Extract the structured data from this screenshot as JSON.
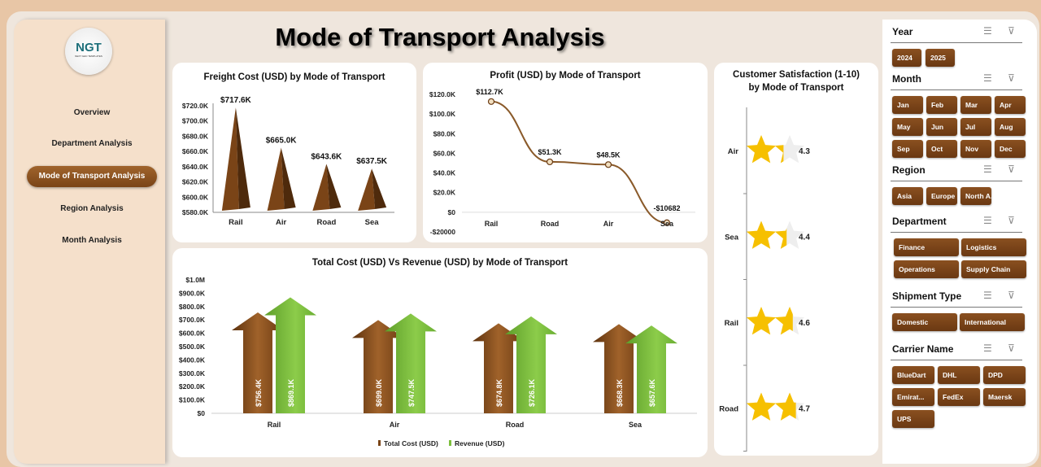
{
  "title": "Mode of Transport Analysis",
  "logo": {
    "text": "NGT",
    "subtext": "NEXT GEN TEMPLATES"
  },
  "nav": [
    {
      "label": "Overview",
      "active": false
    },
    {
      "label": "Department Analysis",
      "active": false
    },
    {
      "label": "Mode of Transport Analysis",
      "active": true
    },
    {
      "label": "Region Analysis",
      "active": false
    },
    {
      "label": "Month Analysis",
      "active": false
    }
  ],
  "colors": {
    "brown": "#7a4417",
    "green": "#7cbf3c",
    "accent": "#8a5020"
  },
  "chart_data": [
    {
      "type": "bar",
      "title": "Freight Cost (USD) by Mode of Transport",
      "categories": [
        "Rail",
        "Air",
        "Road",
        "Sea"
      ],
      "values": [
        717600,
        665000,
        643600,
        637500
      ],
      "labels": [
        "$717.6K",
        "$665.0K",
        "$643.6K",
        "$637.5K"
      ],
      "ylim": [
        580000,
        720000
      ],
      "yticks": [
        "$580.0K",
        "$600.0K",
        "$620.0K",
        "$640.0K",
        "$660.0K",
        "$680.0K",
        "$700.0K",
        "$720.0K"
      ],
      "mark": "pyramid"
    },
    {
      "type": "line",
      "title": "Profit (USD) by Mode of Transport",
      "categories": [
        "Rail",
        "Road",
        "Air",
        "Sea"
      ],
      "values": [
        112700,
        51300,
        48500,
        -10682
      ],
      "labels": [
        "$112.7K",
        "$51.3K",
        "$48.5K",
        "-$10682"
      ],
      "ylim": [
        -20000,
        120000
      ],
      "yticks": [
        "-$20000",
        "$0",
        "$20.0K",
        "$40.0K",
        "$60.0K",
        "$80.0K",
        "$100.0K",
        "$120.0K"
      ],
      "smooth": true
    },
    {
      "type": "bar",
      "title": "Customer Satisfaction (1-10) by Mode of Transport",
      "title_lines": [
        "Customer Satisfaction (1-10)",
        "by Mode of Transport"
      ],
      "orientation": "horizontal",
      "categories": [
        "Air",
        "Sea",
        "Rail",
        "Road"
      ],
      "values": [
        4.3,
        4.4,
        4.6,
        4.7
      ],
      "labels": [
        "4.3",
        "4.4",
        "4.6",
        "4.7"
      ],
      "mark": "star"
    },
    {
      "type": "bar",
      "title": "Total Cost (USD) Vs Revenue (USD) by Mode of Transport",
      "categories": [
        "Rail",
        "Air",
        "Road",
        "Sea"
      ],
      "series": [
        {
          "name": "Total Cost (USD)",
          "values": [
            756400,
            699000,
            674800,
            668300
          ],
          "labels": [
            "$756.4K",
            "$699.0K",
            "$674.8K",
            "$668.3K"
          ],
          "color": "#7a4417"
        },
        {
          "name": "Revenue (USD)",
          "values": [
            869100,
            747500,
            726100,
            657600
          ],
          "labels": [
            "$869.1K",
            "$747.5K",
            "$726.1K",
            "$657.6K"
          ],
          "color": "#7cbf3c"
        }
      ],
      "ylim": [
        0,
        1000000
      ],
      "yticks": [
        "$0",
        "$100.0K",
        "$200.0K",
        "$300.0K",
        "$400.0K",
        "$500.0K",
        "$600.0K",
        "$700.0K",
        "$800.0K",
        "$900.0K",
        "$1.0M"
      ],
      "legend": "bottom",
      "mark": "arrow"
    }
  ],
  "slicers": [
    {
      "title": "Year",
      "items": [
        "2024",
        "2025"
      ]
    },
    {
      "title": "Month",
      "items": [
        "Jan",
        "Feb",
        "Mar",
        "Apr",
        "May",
        "Jun",
        "Jul",
        "Aug",
        "Sep",
        "Oct",
        "Nov",
        "Dec"
      ]
    },
    {
      "title": "Region",
      "items": [
        "Asia",
        "Europe",
        "North A..."
      ]
    },
    {
      "title": "Department",
      "items": [
        "Finance",
        "Logistics",
        "Operations",
        "Supply Chain"
      ]
    },
    {
      "title": "Shipment Type",
      "items": [
        "Domestic",
        "International"
      ]
    },
    {
      "title": "Carrier Name",
      "items": [
        "BlueDart",
        "DHL",
        "DPD",
        "Emirat...",
        "FedEx",
        "Maersk",
        "UPS"
      ]
    }
  ]
}
